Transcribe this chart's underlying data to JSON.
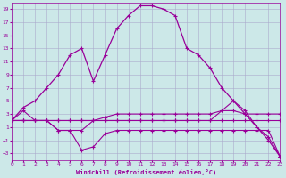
{
  "xlabel": "Windchill (Refroidissement éolien,°C)",
  "background_color": "#cce8e8",
  "grid_color": "#aaaacc",
  "line_color": "#990099",
  "xlim": [
    0,
    23
  ],
  "ylim": [
    -4,
    20
  ],
  "xticks": [
    0,
    1,
    2,
    3,
    4,
    5,
    6,
    7,
    8,
    9,
    10,
    11,
    12,
    13,
    14,
    15,
    16,
    17,
    18,
    19,
    20,
    21,
    22,
    23
  ],
  "yticks": [
    -3,
    -1,
    1,
    3,
    5,
    7,
    9,
    11,
    13,
    15,
    17,
    19
  ],
  "curve1_x": [
    0,
    1,
    2,
    3,
    4,
    5,
    6,
    7,
    8,
    9,
    10,
    11,
    12,
    13,
    14,
    15,
    16,
    17,
    18,
    19,
    20,
    21,
    22,
    23
  ],
  "curve1_y": [
    2,
    2,
    2,
    2,
    2,
    2,
    2,
    2,
    2,
    2,
    2,
    2,
    2,
    2,
    2,
    2,
    2,
    2,
    2,
    2,
    2,
    2,
    2,
    2
  ],
  "curve2_x": [
    0,
    1,
    2,
    3,
    4,
    5,
    6,
    7,
    8,
    9,
    10,
    11,
    12,
    13,
    14,
    15,
    16,
    17,
    18,
    19,
    20,
    21,
    22,
    23
  ],
  "curve2_y": [
    2,
    2,
    2,
    2,
    2,
    2,
    2,
    2,
    2.5,
    3,
    3,
    3,
    3,
    3,
    3,
    3,
    3,
    3,
    3.5,
    3.5,
    3,
    3,
    3,
    3
  ],
  "curve3_x": [
    0,
    1,
    2,
    3,
    4,
    5,
    6,
    7,
    8,
    9,
    10,
    11,
    12,
    13,
    14,
    15,
    16,
    17,
    18,
    19,
    20,
    21,
    22,
    23
  ],
  "curve3_y": [
    2,
    2,
    2,
    2,
    0.5,
    0.5,
    0.5,
    2,
    2,
    2,
    2,
    2,
    2,
    2,
    2,
    2,
    2,
    2,
    3.5,
    5,
    3.5,
    1,
    -0.5,
    -3.5
  ],
  "curve4_x": [
    0,
    1,
    2,
    3,
    4,
    5,
    6,
    7,
    8,
    9,
    10,
    11,
    12,
    13,
    14,
    15,
    16,
    17,
    18,
    19,
    20,
    21,
    22,
    23
  ],
  "curve4_y": [
    2,
    4,
    5,
    7,
    9,
    12,
    13,
    8,
    12,
    16,
    18,
    19.5,
    19.5,
    19,
    18,
    13,
    12,
    10,
    7,
    5,
    3,
    1,
    -1,
    -3.5
  ],
  "curve_wavy_x": [
    0,
    1,
    2,
    3,
    4,
    5,
    6,
    7,
    8,
    9,
    10,
    11,
    12,
    13,
    14,
    15,
    16,
    17,
    18,
    19,
    20,
    21,
    22,
    23
  ],
  "curve_wavy_y": [
    2,
    3.5,
    2,
    2,
    0.5,
    0.5,
    -2.5,
    -2,
    0,
    0.5,
    0.5,
    0.5,
    0.5,
    0.5,
    0.5,
    0.5,
    0.5,
    0.5,
    0.5,
    0.5,
    0.5,
    0.5,
    0.5,
    -3.5
  ]
}
